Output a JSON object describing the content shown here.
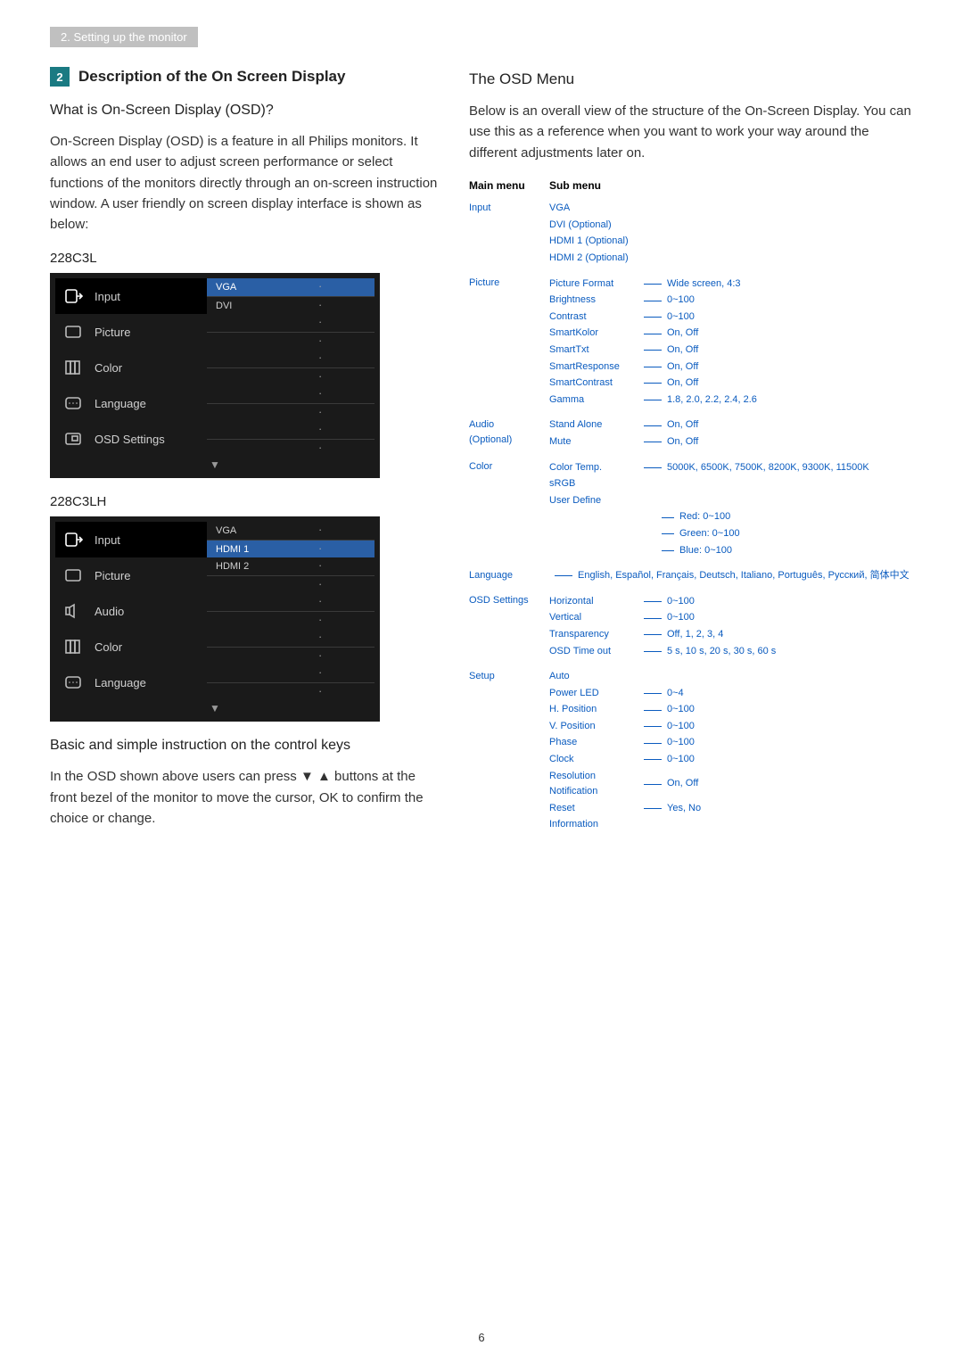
{
  "breadcrumb": "2. Setting up the monitor",
  "section_num": "2",
  "section_title": "Description of the On Screen Display",
  "q_heading": "What is On-Screen Display (OSD)?",
  "q_body": "On-Screen Display (OSD) is a feature in all Philips monitors. It allows an end user to adjust screen performance or select functions of the monitors directly through an on-screen instruction window. A user friendly on screen display interface is shown as below:",
  "model1": "228C3L",
  "model2": "228C3LH",
  "basic_heading": "Basic and simple instruction on the control keys",
  "basic_body_a": "In the OSD shown above users can press ",
  "basic_body_b": " buttons at the front bezel of the monitor to move the cursor, ",
  "basic_body_c": " to confirm the choice or change.",
  "ok_label": "OK",
  "right_heading": "The OSD Menu",
  "right_body": "Below is an overall view of the structure of the On-Screen Display. You can use this as a reference when you want to work your way around the different adjustments later on.",
  "tree_header_main": "Main menu",
  "tree_header_sub": "Sub menu",
  "page_number": "6",
  "osd1": {
    "rows": [
      {
        "icon": "input",
        "label": "Input",
        "active": true,
        "subs": [
          {
            "t": "VGA",
            "active": true
          },
          {
            "t": "DVI",
            "active": false
          }
        ]
      },
      {
        "icon": "picture",
        "label": "Picture",
        "subs": [
          {
            "t": ""
          },
          {
            "t": ""
          }
        ]
      },
      {
        "icon": "color",
        "label": "Color",
        "subs": [
          {
            "t": ""
          },
          {
            "t": ""
          }
        ]
      },
      {
        "icon": "language",
        "label": "Language",
        "subs": [
          {
            "t": ""
          },
          {
            "t": ""
          }
        ]
      },
      {
        "icon": "osd",
        "label": "OSD Settings",
        "subs": [
          {
            "t": ""
          },
          {
            "t": ""
          }
        ]
      }
    ]
  },
  "osd2": {
    "rows": [
      {
        "icon": "input",
        "label": "Input",
        "active": true,
        "subs": [
          {
            "t": "VGA"
          },
          {
            "t": "HDMI 1",
            "active": true
          }
        ]
      },
      {
        "icon": "picture",
        "label": "Picture",
        "subs": [
          {
            "t": "HDMI 2"
          },
          {
            "t": ""
          }
        ]
      },
      {
        "icon": "audio",
        "label": "Audio",
        "subs": [
          {
            "t": ""
          },
          {
            "t": ""
          }
        ]
      },
      {
        "icon": "color",
        "label": "Color",
        "subs": [
          {
            "t": ""
          },
          {
            "t": ""
          }
        ]
      },
      {
        "icon": "language",
        "label": "Language",
        "subs": [
          {
            "t": ""
          },
          {
            "t": ""
          }
        ]
      }
    ]
  },
  "tree": [
    {
      "main": "Input",
      "subs": [
        {
          "l": "VGA",
          "v": ""
        },
        {
          "l": "DVI (Optional)",
          "v": ""
        },
        {
          "l": "HDMI 1 (Optional)",
          "v": ""
        },
        {
          "l": "HDMI 2 (Optional)",
          "v": ""
        }
      ]
    },
    {
      "main": "Picture",
      "subs": [
        {
          "l": "Picture Format",
          "v": "Wide screen, 4:3"
        },
        {
          "l": "Brightness",
          "v": "0~100"
        },
        {
          "l": "Contrast",
          "v": "0~100"
        },
        {
          "l": "SmartKolor",
          "v": "On, Off"
        },
        {
          "l": "SmartTxt",
          "v": "On, Off"
        },
        {
          "l": "SmartResponse",
          "v": "On, Off"
        },
        {
          "l": "SmartContrast",
          "v": "On, Off"
        },
        {
          "l": "Gamma",
          "v": "1.8, 2.0, 2.2, 2.4, 2.6"
        }
      ]
    },
    {
      "main": "Audio",
      "main2": "(Optional)",
      "subs": [
        {
          "l": "Stand Alone",
          "v": "On, Off"
        },
        {
          "l": "Mute",
          "v": "On, Off"
        }
      ]
    },
    {
      "main": "Color",
      "subs": [
        {
          "l": "Color Temp.",
          "v": "5000K, 6500K, 7500K, 8200K, 9300K, 11500K"
        },
        {
          "l": "sRGB",
          "v": ""
        },
        {
          "l": "User Define",
          "nested": [
            {
              "l": "Red: 0~100"
            },
            {
              "l": "Green: 0~100"
            },
            {
              "l": "Blue: 0~100"
            }
          ]
        }
      ]
    },
    {
      "main": "Language",
      "subs": [
        {
          "text": "English, Español, Français, Deutsch, Italiano, Português, Русский, 简体中文"
        }
      ]
    },
    {
      "main": "OSD Settings",
      "subs": [
        {
          "l": "Horizontal",
          "v": "0~100"
        },
        {
          "l": "Vertical",
          "v": "0~100"
        },
        {
          "l": "Transparency",
          "v": "Off, 1, 2, 3, 4"
        },
        {
          "l": "OSD Time out",
          "v": "5 s, 10 s, 20 s, 30 s, 60 s"
        }
      ]
    },
    {
      "main": "Setup",
      "subs": [
        {
          "l": "Auto",
          "v": ""
        },
        {
          "l": "Power LED",
          "v": "0~4"
        },
        {
          "l": "H. Position",
          "v": "0~100"
        },
        {
          "l": "V. Position",
          "v": "0~100"
        },
        {
          "l": "Phase",
          "v": "0~100"
        },
        {
          "l": "Clock",
          "v": "0~100"
        },
        {
          "l": "Resolution Notification",
          "v": "On, Off"
        },
        {
          "l": "Reset",
          "v": "Yes, No"
        },
        {
          "l": "Information",
          "v": ""
        }
      ]
    }
  ]
}
